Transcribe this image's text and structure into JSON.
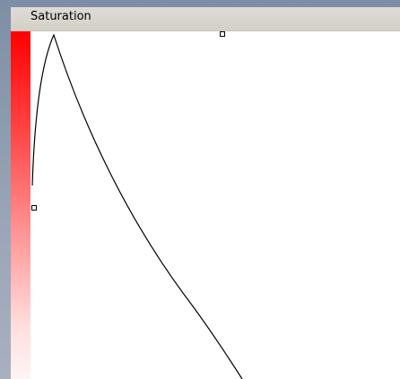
{
  "panel": {
    "title": "Saturation"
  },
  "curve": {
    "stroke_color": "#000000"
  },
  "gradient": {
    "top_color": "#ff0000",
    "bottom_color": "#fff4f4"
  }
}
